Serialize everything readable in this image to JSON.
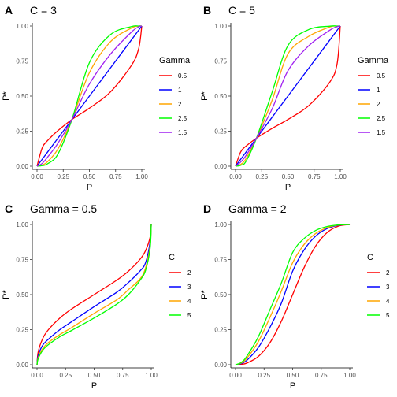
{
  "chart_data": [
    {
      "type": "line",
      "panel_label": "A",
      "title": "C = 3",
      "xlabel": "P",
      "ylabel": "P*",
      "xlim": [
        0,
        1
      ],
      "ylim": [
        0,
        1
      ],
      "x_ticks": [
        "0.00",
        "0.25",
        "0.50",
        "0.75",
        "1.00"
      ],
      "y_ticks": [
        "0.00",
        "0.25",
        "0.50",
        "0.75",
        "1.00"
      ],
      "grid": false,
      "legend": {
        "title": "Gamma",
        "position": "right"
      },
      "series": [
        {
          "name": "0.5",
          "color": "#ff0000",
          "x": [
            0,
            0.05,
            0.1,
            0.2,
            0.333,
            0.5,
            0.7,
            0.9,
            0.97,
            1
          ],
          "y": [
            0,
            0.132,
            0.182,
            0.254,
            0.333,
            0.414,
            0.529,
            0.718,
            0.838,
            1
          ]
        },
        {
          "name": "1",
          "color": "#0000ff",
          "x": [
            0,
            0.05,
            0.1,
            0.2,
            0.333,
            0.5,
            0.7,
            0.9,
            0.97,
            1
          ],
          "y": [
            0,
            0.05,
            0.1,
            0.2,
            0.333,
            0.5,
            0.7,
            0.9,
            0.97,
            1
          ]
        },
        {
          "name": "2",
          "color": "#ffa500",
          "x": [
            0,
            0.05,
            0.1,
            0.2,
            0.333,
            0.5,
            0.7,
            0.9,
            0.97,
            1
          ],
          "y": [
            0,
            0.008,
            0.032,
            0.123,
            0.333,
            0.667,
            0.887,
            0.985,
            0.999,
            1
          ]
        },
        {
          "name": "2.5",
          "color": "#00ff00",
          "x": [
            0,
            0.05,
            0.1,
            0.2,
            0.333,
            0.5,
            0.7,
            0.9,
            0.97,
            1
          ],
          "y": [
            0,
            0.004,
            0.017,
            0.087,
            0.333,
            0.739,
            0.938,
            0.996,
            1.0,
            1
          ]
        },
        {
          "name": "1.5",
          "color": "#a020f0",
          "x": [
            0,
            0.05,
            0.1,
            0.2,
            0.333,
            0.5,
            0.7,
            0.9,
            0.97,
            1
          ],
          "y": [
            0,
            0.02,
            0.064,
            0.164,
            0.333,
            0.586,
            0.798,
            0.956,
            0.994,
            1
          ]
        }
      ]
    },
    {
      "type": "line",
      "panel_label": "B",
      "title": "C = 5",
      "xlabel": "P",
      "ylabel": "P*",
      "xlim": [
        0,
        1
      ],
      "ylim": [
        0,
        1
      ],
      "x_ticks": [
        "0.00",
        "0.25",
        "0.50",
        "0.75",
        "1.00"
      ],
      "y_ticks": [
        "0.00",
        "0.25",
        "0.50",
        "0.75",
        "1.00"
      ],
      "grid": false,
      "legend": {
        "title": "Gamma",
        "position": "right"
      },
      "series": [
        {
          "name": "0.5",
          "color": "#ff0000",
          "x": [
            0,
            0.05,
            0.1,
            0.2,
            0.35,
            0.5,
            0.7,
            0.9,
            0.97,
            1
          ],
          "y": [
            0,
            0.103,
            0.143,
            0.2,
            0.27,
            0.333,
            0.433,
            0.6,
            0.732,
            1
          ]
        },
        {
          "name": "1",
          "color": "#0000ff",
          "x": [
            0,
            0.05,
            0.1,
            0.2,
            0.35,
            0.5,
            0.7,
            0.9,
            0.97,
            1
          ],
          "y": [
            0,
            0.05,
            0.1,
            0.2,
            0.35,
            0.5,
            0.7,
            0.9,
            0.97,
            1
          ]
        },
        {
          "name": "2",
          "color": "#ffa500",
          "x": [
            0,
            0.05,
            0.1,
            0.2,
            0.35,
            0.5,
            0.7,
            0.9,
            0.97,
            1
          ],
          "y": [
            0,
            0.013,
            0.053,
            0.2,
            0.472,
            0.8,
            0.927,
            0.993,
            0.999,
            1
          ]
        },
        {
          "name": "2.5",
          "color": "#00ff00",
          "x": [
            0,
            0.05,
            0.1,
            0.2,
            0.35,
            0.5,
            0.7,
            0.9,
            0.97,
            1
          ],
          "y": [
            0,
            0.007,
            0.035,
            0.2,
            0.53,
            0.86,
            0.975,
            0.999,
            1.0,
            1
          ]
        },
        {
          "name": "1.5",
          "color": "#a020f0",
          "x": [
            0,
            0.05,
            0.1,
            0.2,
            0.35,
            0.5,
            0.7,
            0.9,
            0.97,
            1
          ],
          "y": [
            0,
            0.03,
            0.076,
            0.2,
            0.41,
            0.68,
            0.86,
            0.97,
            0.995,
            1
          ]
        }
      ]
    },
    {
      "type": "line",
      "panel_label": "C",
      "title": "Gamma = 0.5",
      "xlabel": "P",
      "ylabel": "P*",
      "xlim": [
        0,
        1
      ],
      "ylim": [
        0,
        1
      ],
      "x_ticks": [
        "0.00",
        "0.25",
        "0.50",
        "0.75",
        "1.00"
      ],
      "y_ticks": [
        "0.00",
        "0.25",
        "0.50",
        "0.75",
        "1.00"
      ],
      "grid": false,
      "legend": {
        "title": "C",
        "position": "right"
      },
      "series": [
        {
          "name": "2",
          "color": "#ff0000",
          "x": [
            0,
            0.01,
            0.05,
            0.1,
            0.2,
            0.3,
            0.5,
            0.7,
            0.8,
            0.9,
            0.95,
            0.99,
            1
          ],
          "y": [
            0,
            0.091,
            0.187,
            0.25,
            0.333,
            0.396,
            0.5,
            0.604,
            0.667,
            0.75,
            0.813,
            0.909,
            1
          ]
        },
        {
          "name": "3",
          "color": "#0000ff",
          "x": [
            0,
            0.01,
            0.05,
            0.1,
            0.2,
            0.3,
            0.5,
            0.7,
            0.8,
            0.9,
            0.95,
            0.99,
            1
          ],
          "y": [
            0,
            0.066,
            0.139,
            0.182,
            0.25,
            0.305,
            0.414,
            0.518,
            0.586,
            0.667,
            0.727,
            0.876,
            1
          ]
        },
        {
          "name": "4",
          "color": "#ffa500",
          "x": [
            0,
            0.01,
            0.05,
            0.1,
            0.2,
            0.3,
            0.5,
            0.7,
            0.8,
            0.9,
            0.95,
            0.99,
            1
          ],
          "y": [
            0,
            0.051,
            0.115,
            0.158,
            0.215,
            0.263,
            0.366,
            0.464,
            0.535,
            0.61,
            0.69,
            0.85,
            1
          ]
        },
        {
          "name": "5",
          "color": "#00ff00",
          "x": [
            0,
            0.01,
            0.05,
            0.1,
            0.2,
            0.3,
            0.5,
            0.7,
            0.8,
            0.9,
            0.95,
            0.99,
            1
          ],
          "y": [
            0,
            0.042,
            0.103,
            0.143,
            0.2,
            0.243,
            0.333,
            0.433,
            0.5,
            0.6,
            0.672,
            0.83,
            1
          ]
        }
      ]
    },
    {
      "type": "line",
      "panel_label": "D",
      "title": "Gamma = 2",
      "xlabel": "P",
      "ylabel": "P*",
      "xlim": [
        0,
        1
      ],
      "ylim": [
        0,
        1
      ],
      "x_ticks": [
        "0.00",
        "0.25",
        "0.50",
        "0.75",
        "1.00"
      ],
      "y_ticks": [
        "0.00",
        "0.25",
        "0.50",
        "0.75",
        "1.00"
      ],
      "grid": false,
      "legend": {
        "title": "C",
        "position": "right"
      },
      "series": [
        {
          "name": "2",
          "color": "#ff0000",
          "x": [
            0,
            0.05,
            0.1,
            0.2,
            0.3,
            0.4,
            0.5,
            0.6,
            0.7,
            0.8,
            0.9,
            1
          ],
          "y": [
            0,
            0.003,
            0.012,
            0.059,
            0.155,
            0.308,
            0.5,
            0.692,
            0.845,
            0.941,
            0.988,
            1
          ]
        },
        {
          "name": "3",
          "color": "#0000ff",
          "x": [
            0,
            0.05,
            0.1,
            0.2,
            0.3,
            0.4,
            0.5,
            0.6,
            0.7,
            0.8,
            0.9,
            1
          ],
          "y": [
            0,
            0.008,
            0.032,
            0.123,
            0.264,
            0.436,
            0.667,
            0.818,
            0.916,
            0.97,
            0.994,
            1
          ]
        },
        {
          "name": "4",
          "color": "#ffa500",
          "x": [
            0,
            0.05,
            0.1,
            0.2,
            0.3,
            0.4,
            0.5,
            0.6,
            0.7,
            0.8,
            0.9,
            1
          ],
          "y": [
            0,
            0.012,
            0.047,
            0.165,
            0.335,
            0.523,
            0.727,
            0.857,
            0.935,
            0.977,
            0.996,
            1
          ]
        },
        {
          "name": "5",
          "color": "#00ff00",
          "x": [
            0,
            0.05,
            0.1,
            0.2,
            0.3,
            0.4,
            0.5,
            0.6,
            0.7,
            0.8,
            0.9,
            1
          ],
          "y": [
            0,
            0.016,
            0.062,
            0.2,
            0.39,
            0.58,
            0.8,
            0.9,
            0.957,
            0.985,
            0.997,
            1
          ]
        }
      ]
    }
  ]
}
